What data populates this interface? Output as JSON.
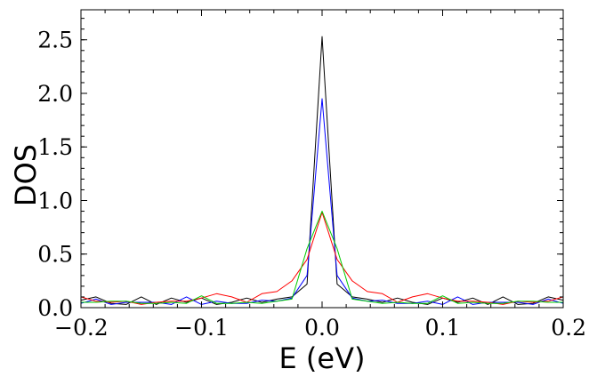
{
  "chart_data": {
    "type": "line",
    "title": "",
    "xlabel": "E (eV)",
    "ylabel": "DOS",
    "xlim": [
      -0.2,
      0.2
    ],
    "ylim": [
      0,
      2.78
    ],
    "x_ticks": [
      -0.2,
      -0.1,
      0.0,
      0.1,
      0.2
    ],
    "x_tick_labels": [
      "−0.2",
      "−0.1",
      "0.0",
      "0.1",
      "0.2"
    ],
    "y_ticks": [
      0.0,
      0.5,
      1.0,
      1.5,
      2.0,
      2.5
    ],
    "y_tick_labels": [
      "0.0",
      "0.5",
      "1.0",
      "1.5",
      "2.0",
      "2.5"
    ],
    "grid": false,
    "legend": "none",
    "x": [
      -0.2,
      -0.1875,
      -0.175,
      -0.1625,
      -0.15,
      -0.1375,
      -0.125,
      -0.1125,
      -0.1,
      -0.0875,
      -0.075,
      -0.0625,
      -0.05,
      -0.0375,
      -0.025,
      -0.0125,
      0.0,
      0.0125,
      0.025,
      0.0375,
      0.05,
      0.0625,
      0.075,
      0.0875,
      0.1,
      0.1125,
      0.125,
      0.1375,
      0.15,
      0.1625,
      0.175,
      0.1875,
      0.2
    ],
    "series": [
      {
        "color": "#000000",
        "values": [
          0.07,
          0.1,
          0.04,
          0.03,
          0.1,
          0.03,
          0.09,
          0.05,
          0.09,
          0.03,
          0.05,
          0.09,
          0.05,
          0.08,
          0.1,
          0.22,
          2.53,
          0.22,
          0.1,
          0.08,
          0.05,
          0.09,
          0.05,
          0.03,
          0.09,
          0.05,
          0.09,
          0.03,
          0.1,
          0.03,
          0.04,
          0.1,
          0.07
        ]
      },
      {
        "color": "#0000ff",
        "values": [
          0.04,
          0.08,
          0.03,
          0.05,
          0.05,
          0.05,
          0.03,
          0.1,
          0.03,
          0.06,
          0.04,
          0.04,
          0.07,
          0.06,
          0.09,
          0.3,
          1.95,
          0.3,
          0.09,
          0.06,
          0.07,
          0.04,
          0.04,
          0.06,
          0.03,
          0.1,
          0.03,
          0.05,
          0.05,
          0.05,
          0.03,
          0.08,
          0.04
        ]
      },
      {
        "color": "#ff0000",
        "values": [
          0.1,
          0.06,
          0.05,
          0.06,
          0.03,
          0.05,
          0.06,
          0.06,
          0.09,
          0.13,
          0.1,
          0.05,
          0.13,
          0.15,
          0.25,
          0.45,
          0.89,
          0.45,
          0.25,
          0.15,
          0.13,
          0.05,
          0.1,
          0.13,
          0.09,
          0.06,
          0.06,
          0.05,
          0.03,
          0.06,
          0.05,
          0.06,
          0.1
        ]
      },
      {
        "color": "#00cc00",
        "values": [
          0.05,
          0.05,
          0.06,
          0.06,
          0.04,
          0.04,
          0.05,
          0.04,
          0.11,
          0.04,
          0.04,
          0.05,
          0.04,
          0.06,
          0.08,
          0.55,
          0.9,
          0.55,
          0.08,
          0.06,
          0.04,
          0.05,
          0.04,
          0.04,
          0.11,
          0.04,
          0.05,
          0.04,
          0.04,
          0.06,
          0.06,
          0.05,
          0.05
        ]
      }
    ]
  }
}
